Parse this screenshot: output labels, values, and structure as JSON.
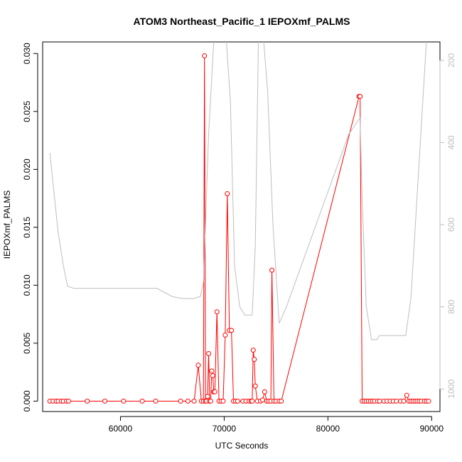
{
  "chart_data": {
    "type": "line",
    "title": "ATOM3 Northeast_Pacific_1 IEPOXmf_PALMS",
    "xlabel": "UTC Seconds",
    "ylabel": "IEPOXmf_PALMS",
    "xlim": [
      52500,
      90800
    ],
    "ylim": [
      -0.0009,
      0.031
    ],
    "x_ticks": [
      60000,
      70000,
      80000,
      90000
    ],
    "x_tick_labels": [
      "60000",
      "70000",
      "80000",
      "90000"
    ],
    "y_ticks": [
      0.0,
      0.005,
      0.01,
      0.015,
      0.02,
      0.025,
      0.03
    ],
    "y_tick_labels": [
      "0.000",
      "0.005",
      "0.010",
      "0.015",
      "0.020",
      "0.025",
      "0.030"
    ],
    "right_axis": {
      "ylim": [
        1055,
        155
      ],
      "ticks": [
        200,
        400,
        600,
        800,
        1000
      ],
      "tick_labels": [
        "200",
        "400",
        "600",
        "800",
        "1000"
      ],
      "color": "#bebebe"
    },
    "grid": false,
    "series": [
      {
        "color": "#ff0000",
        "marker": "open-circle",
        "x": [
          53200,
          53500,
          53800,
          54000,
          54300,
          54500,
          54800,
          55000,
          56800,
          58500,
          60300,
          62100,
          63400,
          65800,
          66500,
          67100,
          67500,
          67800,
          68000,
          68100,
          68200,
          68300,
          68400,
          68500,
          68600,
          68700,
          68800,
          68900,
          69000,
          69100,
          69300,
          69500,
          69700,
          69900,
          70100,
          70300,
          70500,
          70700,
          70900,
          71100,
          71300,
          71800,
          72100,
          72400,
          72600,
          72700,
          72800,
          72900,
          73000,
          73200,
          73500,
          73700,
          73900,
          74100,
          74300,
          74500,
          74600,
          74800,
          75000,
          75300,
          75500,
          83000,
          83100,
          83300,
          83500,
          83700,
          83900,
          84100,
          84300,
          84500,
          84800,
          85000,
          85400,
          85700,
          86000,
          86300,
          86600,
          87000,
          87300,
          87600,
          87800,
          88000,
          88200,
          88400,
          88600,
          88800,
          89000,
          89300,
          89500,
          89700
        ],
        "y": [
          0.0,
          0.0,
          0.0,
          0.0,
          0.0,
          0.0,
          0.0,
          0.0,
          0.0,
          0.0,
          0.0,
          0.0,
          0.0,
          0.0,
          0.0,
          0.0,
          0.0031,
          0.0,
          0.0,
          0.0298,
          0.0,
          0.0,
          0.0004,
          0.0041,
          0.0,
          0.0,
          0.0026,
          0.0022,
          0.0008,
          0.0008,
          0.0077,
          0.0,
          0.0,
          0.0,
          0.0057,
          0.0179,
          0.0061,
          0.0061,
          0.0,
          0.0,
          0.0,
          0.0,
          0.0,
          0.0,
          0.0,
          0.0,
          0.0044,
          0.0036,
          0.0013,
          0.0,
          0.0,
          0.0001,
          0.0008,
          0.0,
          0.0,
          0.0,
          0.0113,
          0.0,
          0.0,
          0.0,
          0.0,
          0.0263,
          0.0263,
          0.0,
          0.0,
          0.0,
          0.0,
          0.0,
          0.0,
          0.0,
          0.0,
          0.0,
          0.0,
          0.0,
          0.0,
          0.0,
          0.0,
          0.0,
          0.0,
          0.0005,
          0.0,
          0.0,
          0.0,
          0.0,
          0.0,
          0.0,
          0.0,
          0.0,
          0.0,
          0.0
        ]
      },
      {
        "color": "#bebebe",
        "axis": "right",
        "marker": "none",
        "x": [
          53200,
          53500,
          54000,
          54500,
          54900,
          55500,
          58000,
          60000,
          62000,
          63500,
          65000,
          66000,
          67000,
          67700,
          68000,
          68500,
          69000,
          69500,
          69800,
          70200,
          70600,
          71000,
          71500,
          72000,
          72700,
          73000,
          73300,
          73800,
          74200,
          74700,
          75300,
          76000,
          77000,
          78000,
          79000,
          80000,
          81000,
          82000,
          83100,
          83300,
          83700,
          84200,
          84700,
          85000,
          85500,
          86500,
          87500,
          88000,
          88500,
          89000,
          89500
        ],
        "y": [
          425,
          500,
          620,
          700,
          750,
          755,
          755,
          755,
          755,
          755,
          775,
          780,
          780,
          775,
          740,
          380,
          150,
          150,
          150,
          150,
          300,
          700,
          800,
          820,
          820,
          650,
          150,
          150,
          280,
          600,
          840,
          800,
          730,
          660,
          590,
          520,
          450,
          380,
          340,
          540,
          800,
          880,
          880,
          870,
          870,
          870,
          870,
          780,
          570,
          360,
          150
        ]
      }
    ]
  }
}
